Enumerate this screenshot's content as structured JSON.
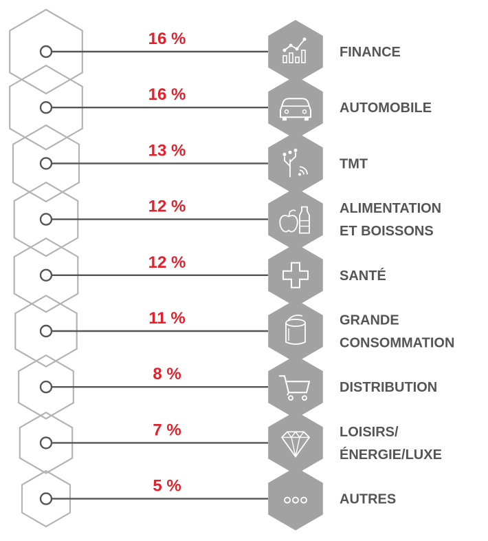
{
  "chart_data": {
    "type": "bar",
    "categories": [
      "FINANCE",
      "AUTOMOBILE",
      "TMT",
      "ALIMENTATION\nET BOISSONS",
      "SANTÉ",
      "GRANDE\nCONSOMMATION",
      "DISTRIBUTION",
      "LOISIRS/\nÉNERGIE/LUXE",
      "AUTRES"
    ],
    "values": [
      16,
      16,
      13,
      12,
      12,
      11,
      8,
      7,
      5
    ],
    "value_labels": [
      "16 %",
      "16 %",
      "13 %",
      "12 %",
      "12 %",
      "11 %",
      "8 %",
      "7 %",
      "5 %"
    ],
    "icons": [
      "chart-icon",
      "car-icon",
      "tree-network-icon",
      "apple-bottle-icon",
      "medical-cross-icon",
      "can-icon",
      "cart-icon",
      "diamond-icon",
      "dots-icon"
    ],
    "colors": {
      "value": "#e3202b",
      "label": "#555555",
      "hexagon_fill": "#a2a2a2",
      "outline": "#b3b3b3",
      "line": "#555555"
    }
  }
}
